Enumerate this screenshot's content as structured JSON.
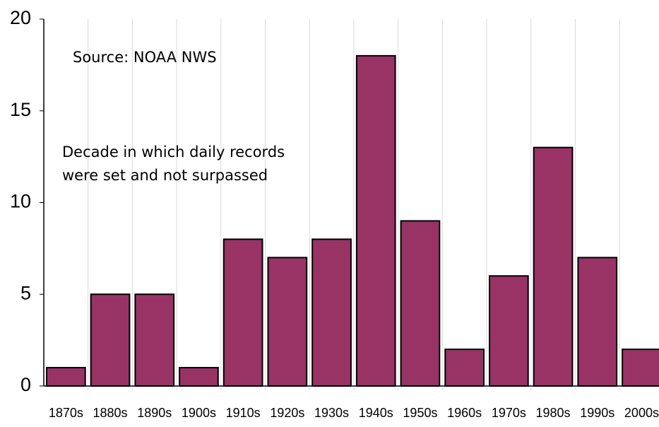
{
  "chart_data": {
    "type": "bar",
    "annotations": [
      "Source: NOAA NWS",
      "Decade in which daily records",
      "were set and not surpassed"
    ],
    "categories": [
      "1870s",
      "1880s",
      "1890s",
      "1900s",
      "1910s",
      "1920s",
      "1930s",
      "1940s",
      "1950s",
      "1960s",
      "1970s",
      "1980s",
      "1990s",
      "2000s"
    ],
    "values": [
      1,
      5,
      5,
      1,
      8,
      7,
      8,
      18,
      9,
      2,
      6,
      13,
      7,
      2
    ],
    "color": "#993366",
    "ylim": [
      0,
      20
    ],
    "yticks": [
      0,
      5,
      10,
      15,
      20
    ],
    "grid": false
  }
}
